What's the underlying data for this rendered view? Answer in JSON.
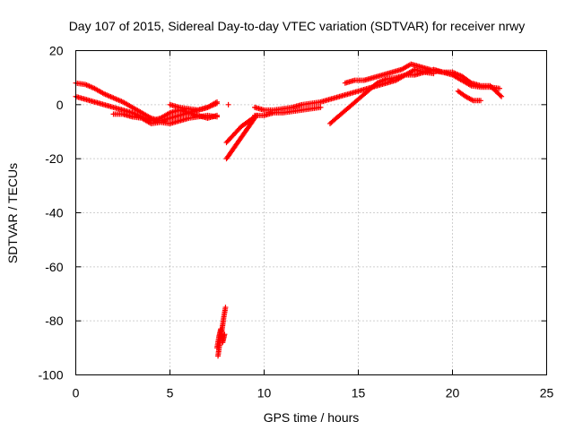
{
  "chart_data": {
    "type": "scatter",
    "title": "Day 107 of 2015, Sidereal Day-to-day VTEC variation (SDTVAR) for receiver nrwy",
    "xlabel": "GPS time / hours",
    "ylabel": "SDTVAR / TECUs",
    "xlim": [
      0,
      25
    ],
    "ylim": [
      -100,
      20
    ],
    "xticks": [
      0,
      5,
      10,
      15,
      20,
      25
    ],
    "yticks": [
      -100,
      -80,
      -60,
      -40,
      -20,
      0,
      20
    ],
    "grid": true,
    "marker": "+",
    "color": "#ff0000",
    "series": [
      {
        "name": "SDTVAR",
        "segments": [
          [
            [
              0.0,
              8
            ],
            [
              0.5,
              7.5
            ],
            [
              1.0,
              6
            ],
            [
              1.5,
              4
            ],
            [
              2.0,
              2.5
            ],
            [
              2.5,
              1
            ],
            [
              3.0,
              -1
            ],
            [
              3.5,
              -3
            ],
            [
              4.0,
              -5
            ],
            [
              4.5,
              -6
            ],
            [
              5.0,
              -5
            ],
            [
              5.5,
              -4
            ],
            [
              6.0,
              -3
            ],
            [
              6.5,
              -2
            ],
            [
              7.0,
              -1
            ],
            [
              7.5,
              1
            ]
          ],
          [
            [
              0.0,
              3
            ],
            [
              0.5,
              2
            ],
            [
              1.0,
              1
            ],
            [
              1.5,
              0
            ],
            [
              2.0,
              -1
            ],
            [
              2.5,
              -2
            ],
            [
              3.0,
              -3
            ],
            [
              3.5,
              -4.5
            ],
            [
              4.0,
              -6
            ],
            [
              4.5,
              -5
            ],
            [
              5.0,
              -3
            ],
            [
              5.5,
              -2
            ],
            [
              6.0,
              -3
            ],
            [
              6.5,
              -4
            ],
            [
              7.0,
              -5
            ],
            [
              7.5,
              -4
            ]
          ],
          [
            [
              2.0,
              -3.5
            ],
            [
              2.5,
              -3.5
            ],
            [
              3.0,
              -4.5
            ],
            [
              3.5,
              -5
            ],
            [
              4.0,
              -7
            ],
            [
              4.5,
              -6.5
            ],
            [
              5.0,
              -7
            ],
            [
              5.5,
              -6
            ],
            [
              6.0,
              -5
            ],
            [
              6.5,
              -4.5
            ],
            [
              7.0,
              -4
            ],
            [
              7.5,
              -4.5
            ]
          ],
          [
            [
              5.0,
              0
            ],
            [
              5.5,
              -1
            ],
            [
              6.0,
              -1.5
            ],
            [
              6.5,
              -2
            ],
            [
              7.0,
              -1
            ],
            [
              7.5,
              0.5
            ]
          ],
          [
            [
              7.55,
              -93
            ],
            [
              7.65,
              -88
            ],
            [
              7.75,
              -84
            ],
            [
              7.85,
              -79
            ],
            [
              7.95,
              -75
            ]
          ],
          [
            [
              7.5,
              -90
            ],
            [
              7.6,
              -86
            ],
            [
              7.7,
              -83
            ],
            [
              7.8,
              -88
            ],
            [
              7.9,
              -85
            ]
          ],
          [
            [
              8.1,
              0
            ]
          ],
          [
            [
              8.0,
              -20
            ],
            [
              8.3,
              -17
            ],
            [
              8.6,
              -14
            ],
            [
              8.9,
              -11
            ],
            [
              9.2,
              -8
            ],
            [
              9.5,
              -5
            ]
          ],
          [
            [
              8.0,
              -14
            ],
            [
              8.4,
              -11
            ],
            [
              8.8,
              -8
            ],
            [
              9.2,
              -6
            ],
            [
              9.6,
              -4
            ]
          ],
          [
            [
              9.5,
              -1
            ],
            [
              10.0,
              -2
            ],
            [
              10.5,
              -2
            ],
            [
              11.0,
              -1.5
            ],
            [
              11.5,
              -1
            ],
            [
              12.0,
              0
            ],
            [
              12.5,
              0.5
            ],
            [
              13.0,
              1
            ],
            [
              13.5,
              2
            ],
            [
              14.0,
              3
            ],
            [
              14.5,
              4
            ],
            [
              15.0,
              5
            ],
            [
              15.5,
              6
            ],
            [
              16.0,
              7
            ],
            [
              16.5,
              8
            ],
            [
              17.0,
              9
            ],
            [
              17.5,
              11
            ],
            [
              18.0,
              13
            ],
            [
              18.5,
              12
            ],
            [
              19.0,
              13
            ],
            [
              19.5,
              12
            ],
            [
              20.0,
              11
            ],
            [
              20.5,
              9
            ],
            [
              21.0,
              7
            ],
            [
              21.5,
              6.5
            ],
            [
              22.0,
              6.5
            ],
            [
              22.5,
              6
            ]
          ],
          [
            [
              9.5,
              -4
            ],
            [
              10.0,
              -4
            ],
            [
              10.5,
              -3
            ],
            [
              11.0,
              -3
            ],
            [
              11.5,
              -2.5
            ],
            [
              12.0,
              -2
            ],
            [
              12.5,
              -1.5
            ],
            [
              13.0,
              -1
            ]
          ],
          [
            [
              13.5,
              -7
            ],
            [
              14.0,
              -4
            ],
            [
              14.5,
              -1
            ],
            [
              15.0,
              2
            ],
            [
              15.5,
              5
            ],
            [
              16.0,
              8
            ],
            [
              16.5,
              9.5
            ],
            [
              17.0,
              10
            ],
            [
              17.5,
              11
            ],
            [
              18.0,
              11
            ],
            [
              18.5,
              12
            ],
            [
              19.0,
              11.5
            ]
          ],
          [
            [
              14.3,
              8
            ],
            [
              14.8,
              9
            ],
            [
              15.3,
              9
            ],
            [
              15.8,
              10
            ],
            [
              16.3,
              11
            ],
            [
              16.8,
              12
            ],
            [
              17.3,
              13
            ],
            [
              17.8,
              15
            ],
            [
              18.3,
              14
            ],
            [
              18.8,
              13
            ]
          ],
          [
            [
              19.0,
              12.5
            ],
            [
              19.5,
              12
            ],
            [
              20.0,
              12
            ],
            [
              20.5,
              10.5
            ],
            [
              21.0,
              8
            ],
            [
              21.5,
              7
            ],
            [
              22.0,
              7
            ],
            [
              22.6,
              3
            ]
          ],
          [
            [
              20.3,
              5
            ],
            [
              20.7,
              3
            ],
            [
              21.1,
              1.5
            ],
            [
              21.5,
              1.5
            ]
          ]
        ]
      }
    ]
  }
}
